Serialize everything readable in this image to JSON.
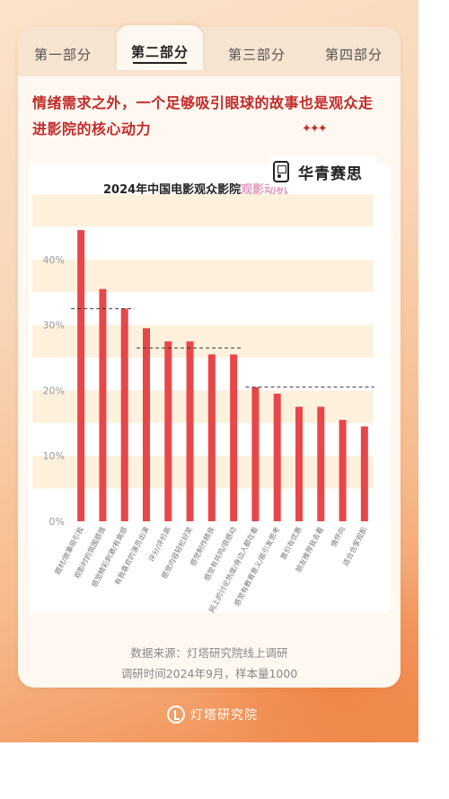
{
  "tabs": [
    {
      "label": "第一部分",
      "active": false
    },
    {
      "label": "第二部分",
      "active": true
    },
    {
      "label": "第三部分",
      "active": false
    },
    {
      "label": "第四部分",
      "active": false
    }
  ],
  "heading": "情绪需求之外，一个足够吸引眼球的故事也是观众走进影院的核心动力",
  "sparkle": "✦✦✦",
  "logo": {
    "name": "华青赛思"
  },
  "chart_title_main": "2024年中国电影观众影院",
  "chart_title_faded": "观影动机",
  "source_line1": "数据来源：灯塔研究院线上调研",
  "source_line2": "调研时间2024年9月，样本量1000",
  "brand_name": "灯塔研究院",
  "colors": {
    "bar": "#e8474a",
    "band": "#fdf1de",
    "heading": "#c22a2a"
  },
  "chart_data": {
    "type": "bar",
    "title": "2024年中国电影观众影院观影动机",
    "categories": [
      "题材/故事吸引我",
      "观影时的氛围感强",
      "感觉精彩刺激/有爽感",
      "有我喜欢的演员出演",
      "评分/评价高",
      "感觉内容轻松好笑",
      "感觉制作精良",
      "感觉有共鸣/很感动",
      "网上的讨论热度/身边人都在看",
      "感觉有教育意义/能引发思考",
      "票价有优惠",
      "朋友推荐我去看",
      "情怀向",
      "适合合家观影"
    ],
    "values": [
      44.5,
      35.5,
      32.5,
      29.5,
      27.5,
      27.5,
      25.5,
      25.5,
      20.5,
      19.5,
      17.5,
      17.5,
      15.5,
      14.5
    ],
    "yticks": [
      "0%",
      "10%",
      "20%",
      "30%",
      "40%"
    ],
    "ylim": [
      0,
      46
    ],
    "dashed_levels": [
      {
        "from": 0,
        "to": 2,
        "value": 32.5
      },
      {
        "from": 3,
        "to": 7,
        "value": 26.5
      },
      {
        "from": 8,
        "to": 13,
        "value": 20.5
      }
    ]
  }
}
